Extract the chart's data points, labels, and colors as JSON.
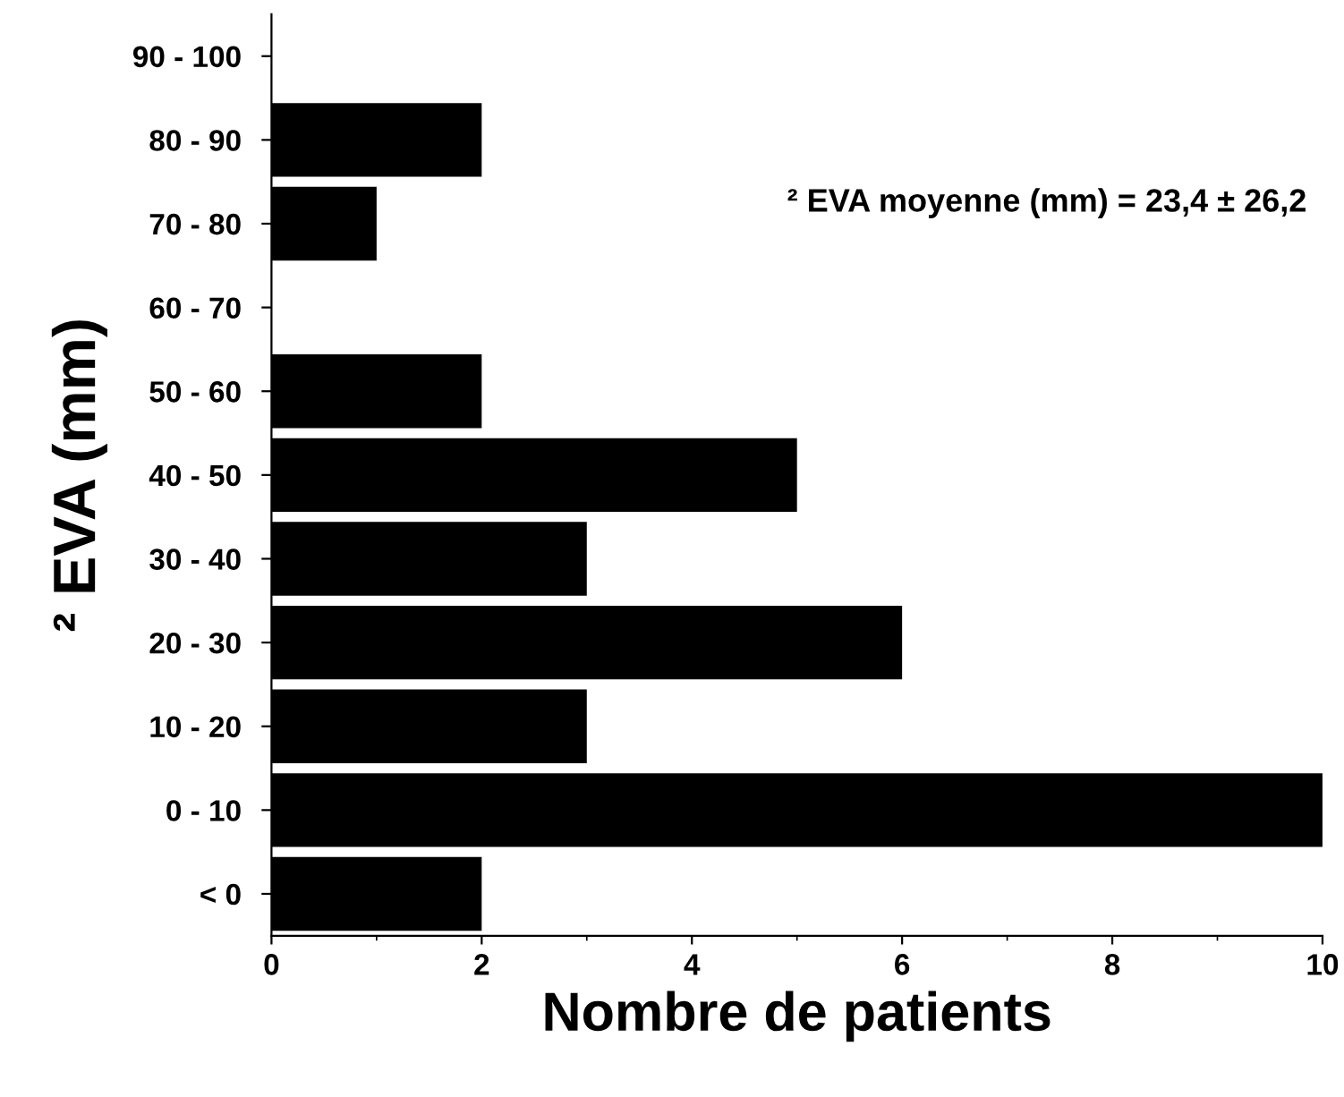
{
  "chart_data": {
    "type": "bar",
    "orientation": "horizontal",
    "categories": [
      "90 - 100",
      "80 - 90",
      "70 - 80",
      "60 - 70",
      "50 - 60",
      "40 - 50",
      "30 - 40",
      "20 - 30",
      "10 - 20",
      "0 - 10",
      "< 0"
    ],
    "values": [
      0,
      2,
      1,
      0,
      2,
      5,
      3,
      6,
      3,
      10,
      2
    ],
    "color": "#000000",
    "xlabel": "Nombre de patients",
    "ylabel": "² EVA (mm)",
    "xlim": [
      0,
      10
    ],
    "xticks": [
      0,
      2,
      4,
      6,
      8,
      10
    ],
    "annotations": [
      "² EVA moyenne (mm) = 23,4 ± 26,2"
    ],
    "grid": false,
    "legend": false
  }
}
